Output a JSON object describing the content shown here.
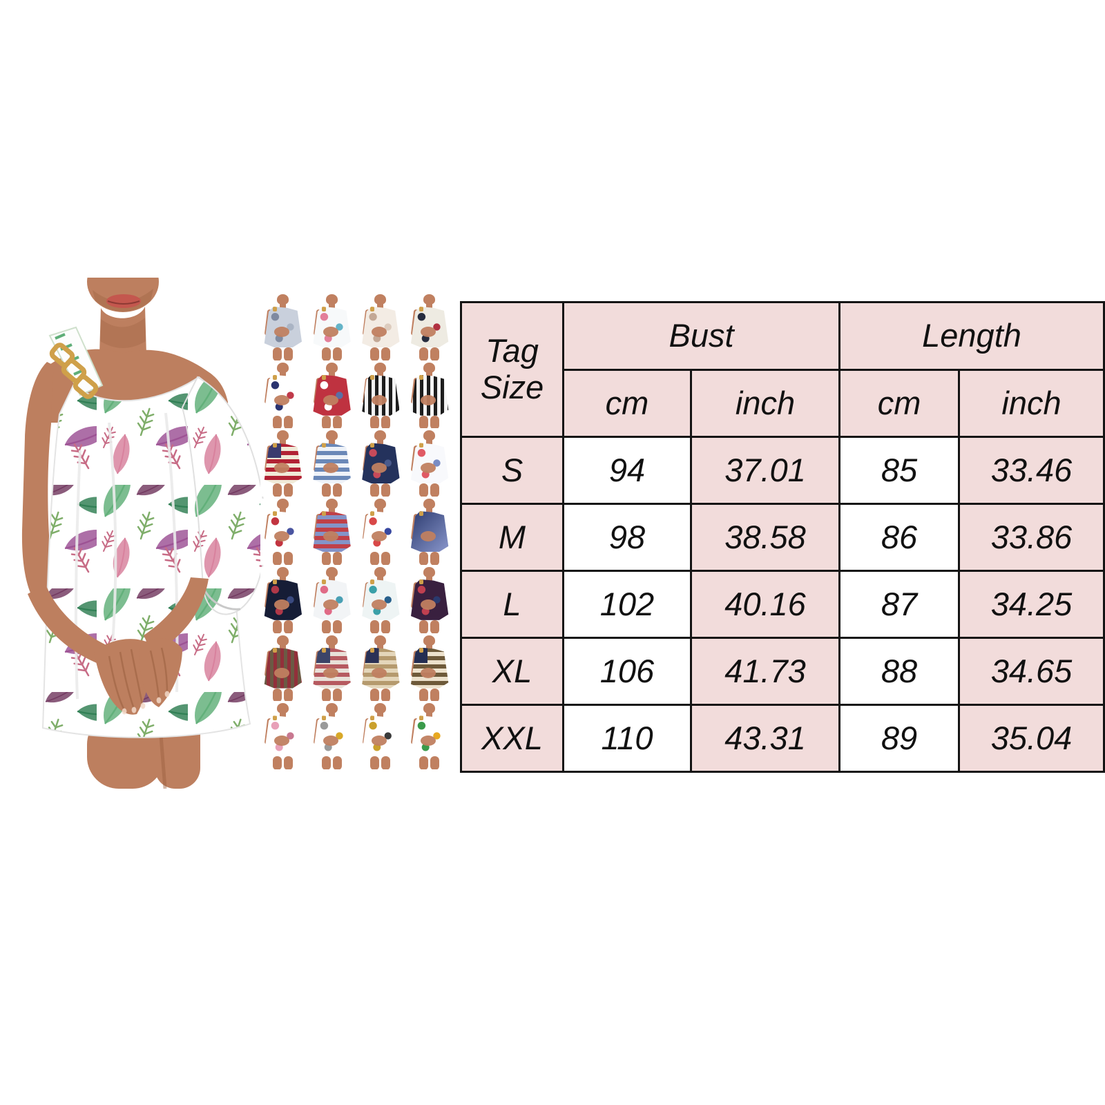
{
  "photo": {
    "description": "Model wearing a white one-shoulder chiffon mini dress with green and purple watercolor feather print and a gold chain shoulder strap"
  },
  "palette": {
    "skin": "#bd7f5f",
    "skin-shadow": "#99603f",
    "lips": "#c4574e",
    "dress": "#ffffff",
    "feather-green": "#5fae78",
    "feather-dark-green": "#2e7d52",
    "feather-purple": "#9b4f93",
    "feather-plum": "#71385f",
    "feather-pink": "#d77f9b",
    "twig-green": "#7fae6a",
    "twig-pink": "#c76b85",
    "gold": "#cfa04a",
    "thumb-skin": "#c08060",
    "table-pink": "#f2dcdb",
    "table-border": "#141414",
    "text": "#111111"
  },
  "variants": [
    {
      "name": "gray-feather",
      "pattern": "splash",
      "colors": [
        "#7f8aa0",
        "#aab4c4",
        "#c9d0dc"
      ]
    },
    {
      "name": "multicolor-feather",
      "pattern": "splash",
      "colors": [
        "#e37f9a",
        "#64b4c8",
        "#f7f9fa"
      ]
    },
    {
      "name": "cream-marble-feather",
      "pattern": "splash",
      "colors": [
        "#c3a896",
        "#ddccbe",
        "#f3ece4"
      ]
    },
    {
      "name": "eagle-flag",
      "pattern": "splash",
      "colors": [
        "#262c3e",
        "#b03040",
        "#eeebe2"
      ]
    },
    {
      "name": "navy-star-patch",
      "pattern": "splash",
      "colors": [
        "#2a3370",
        "#c03a4a",
        "#ffffff"
      ]
    },
    {
      "name": "red-white-abstract",
      "pattern": "splash",
      "colors": [
        "#ffffff",
        "#5a6fa5",
        "#bf3240"
      ]
    },
    {
      "name": "black-white-flag-vertical",
      "pattern": "vstripes",
      "colors": [
        "#1d1d1d",
        "#f4f4f4"
      ]
    },
    {
      "name": "black-white-flag-stars",
      "pattern": "vstripes",
      "colors": [
        "#f4f4f4",
        "#1d1d1d"
      ]
    },
    {
      "name": "usa-flag",
      "pattern": "flag",
      "colors": [
        "#b22234",
        "#f0ead8",
        "#3c3b6e"
      ]
    },
    {
      "name": "blue-stripe-stars",
      "pattern": "hstripes",
      "colors": [
        "#6a88b8",
        "#eef2f8"
      ]
    },
    {
      "name": "navy-rose-floral",
      "pattern": "splash",
      "colors": [
        "#c84a5a",
        "#4a5a8c",
        "#24325c"
      ]
    },
    {
      "name": "poppy-blue-stripes",
      "pattern": "splash",
      "colors": [
        "#e05a64",
        "#7a8cc4",
        "#f8f9fc"
      ]
    },
    {
      "name": "red-blue-floral-white",
      "pattern": "splash",
      "colors": [
        "#c23440",
        "#4a55a0",
        "#ffffff"
      ]
    },
    {
      "name": "patriotic-stripes",
      "pattern": "hstripes",
      "colors": [
        "#c04048",
        "#8494c8"
      ]
    },
    {
      "name": "squiggle-red-blue",
      "pattern": "splash",
      "colors": [
        "#d84848",
        "#3848a0",
        "#ffffff"
      ]
    },
    {
      "name": "navy-swirl",
      "pattern": "plain",
      "colors": [
        "#2b3a6e",
        "#8a97cc"
      ]
    },
    {
      "name": "galaxy-navy-red",
      "pattern": "splash",
      "colors": [
        "#b03848",
        "#3a4a80",
        "#161d36"
      ]
    },
    {
      "name": "floral-paint-splash",
      "pattern": "splash",
      "colors": [
        "#e06a86",
        "#4aa0b4",
        "#f2f4f6"
      ]
    },
    {
      "name": "teal-splatter",
      "pattern": "splash",
      "colors": [
        "#3aa0a8",
        "#28608c",
        "#eef4f4"
      ]
    },
    {
      "name": "red-blue-nebula",
      "pattern": "splash",
      "colors": [
        "#c04050",
        "#2a3a6e",
        "#39203f"
      ]
    },
    {
      "name": "rustic-flag-stripes",
      "pattern": "vstripes",
      "colors": [
        "#6b5a44",
        "#92303a"
      ]
    },
    {
      "name": "faded-usa-flag",
      "pattern": "flag",
      "colors": [
        "#b65a60",
        "#e8e0d8",
        "#3c4468"
      ]
    },
    {
      "name": "leopard-flag",
      "pattern": "flag",
      "colors": [
        "#b59a6e",
        "#e4d6ba",
        "#2a3156"
      ]
    },
    {
      "name": "leopard-stars",
      "pattern": "flag",
      "colors": [
        "#6e5a3a",
        "#ece1cc",
        "#242e52"
      ]
    },
    {
      "name": "pink-butterfly",
      "pattern": "splash",
      "colors": [
        "#e8a0b8",
        "#c87890",
        "#ffffff"
      ]
    },
    {
      "name": "yellow-gray-butterfly",
      "pattern": "splash",
      "colors": [
        "#9a9a9a",
        "#d8a828",
        "#ffffff"
      ]
    },
    {
      "name": "gold-black-butterfly",
      "pattern": "splash",
      "colors": [
        "#caa02c",
        "#3a3a3a",
        "#ffffff"
      ]
    },
    {
      "name": "sunflower-butterfly",
      "pattern": "splash",
      "colors": [
        "#3a9a4a",
        "#e8a820",
        "#ffffff"
      ]
    }
  ],
  "size_chart": {
    "header": {
      "tag_size": "Tag Size",
      "bust": "Bust",
      "length": "Length",
      "cm": "cm",
      "inch": "inch"
    },
    "rows": [
      {
        "size": "S",
        "bust_cm": "94",
        "bust_inch": "37.01",
        "length_cm": "85",
        "length_inch": "33.46"
      },
      {
        "size": "M",
        "bust_cm": "98",
        "bust_inch": "38.58",
        "length_cm": "86",
        "length_inch": "33.86"
      },
      {
        "size": "L",
        "bust_cm": "102",
        "bust_inch": "40.16",
        "length_cm": "87",
        "length_inch": "34.25"
      },
      {
        "size": "XL",
        "bust_cm": "106",
        "bust_inch": "41.73",
        "length_cm": "88",
        "length_inch": "34.65"
      },
      {
        "size": "XXL",
        "bust_cm": "110",
        "bust_inch": "43.31",
        "length_cm": "89",
        "length_inch": "35.04"
      }
    ]
  }
}
